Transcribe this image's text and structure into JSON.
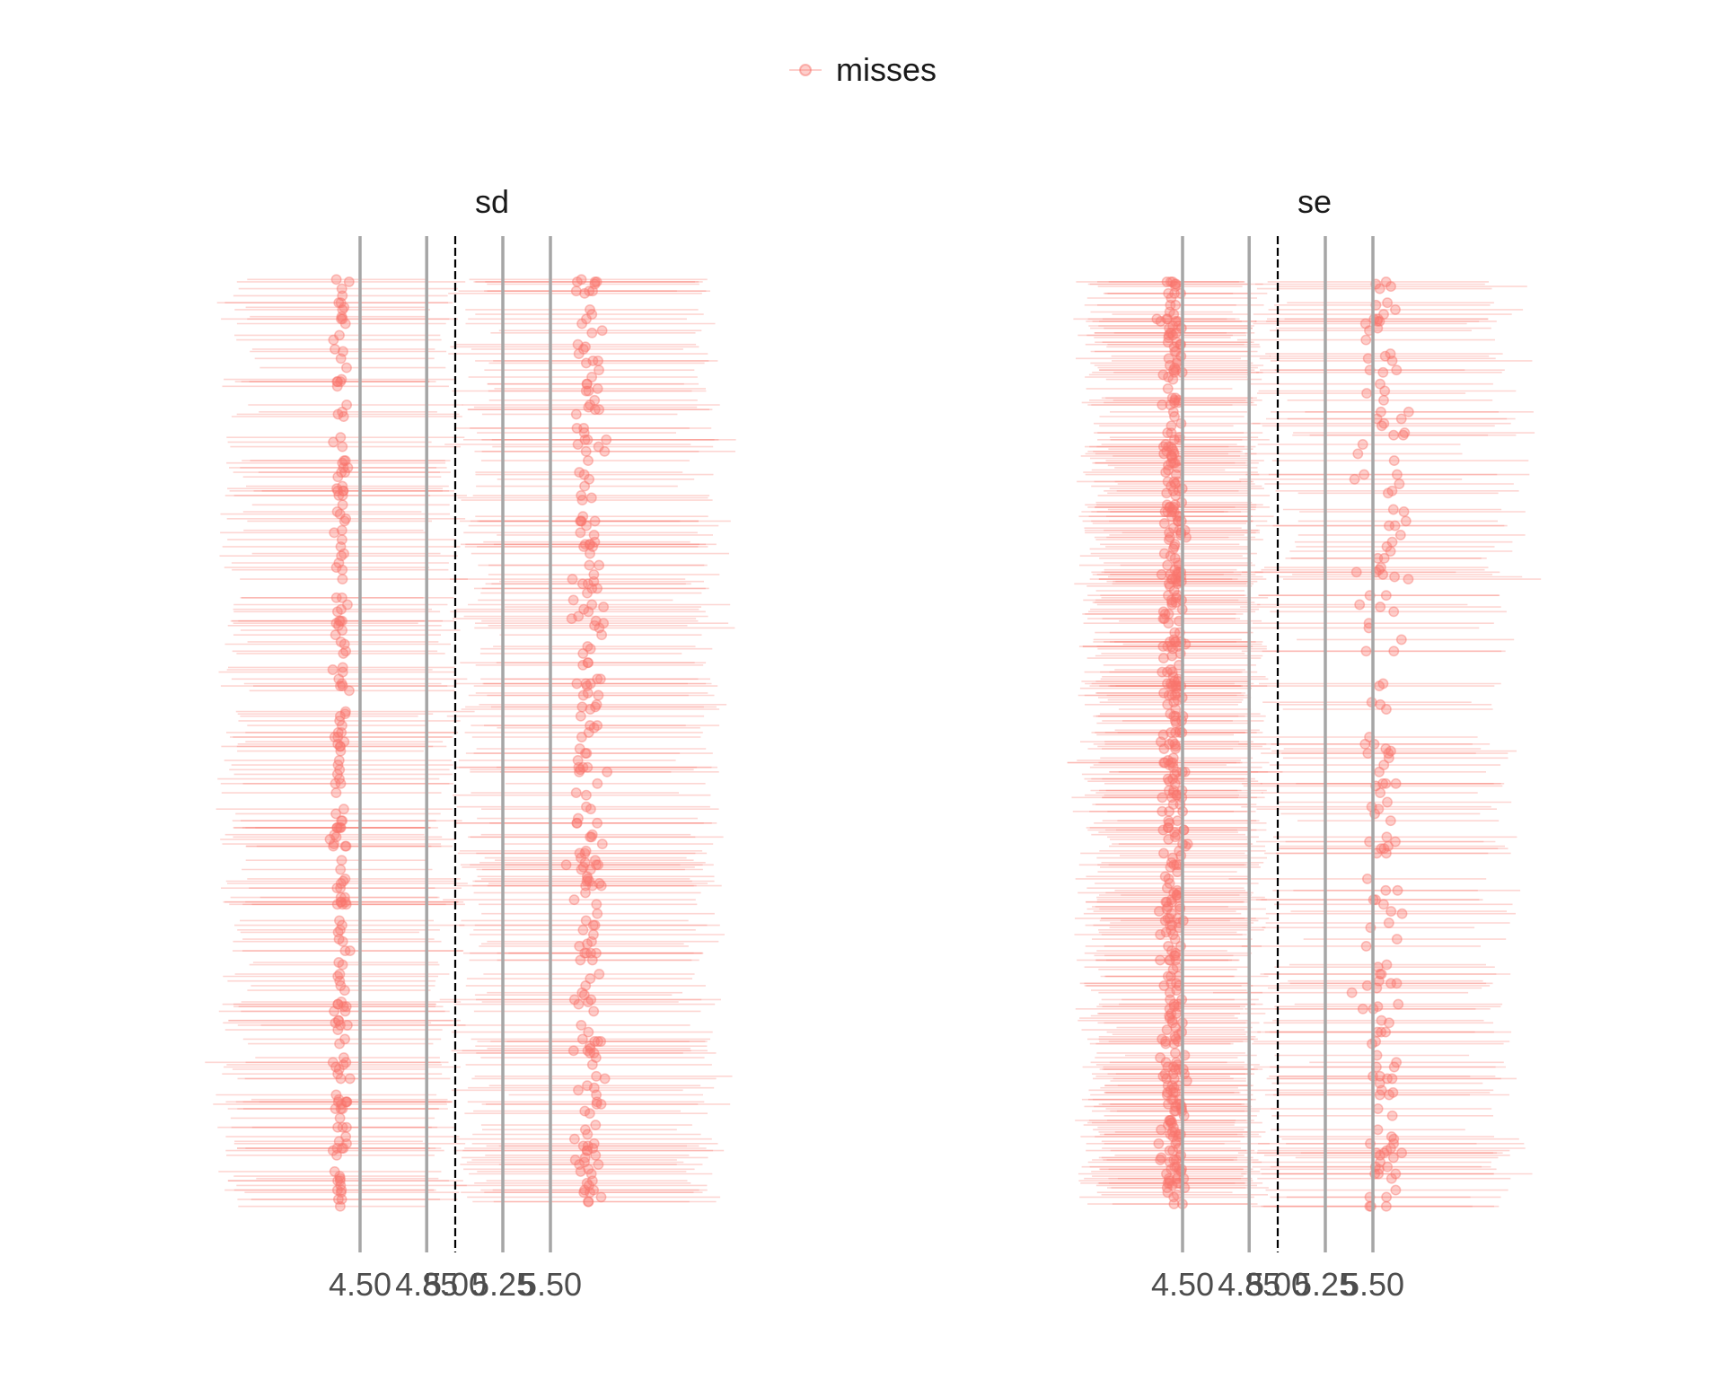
{
  "legend": {
    "label": "misses",
    "color": "#F8766D"
  },
  "chart_data": {
    "type": "scatter",
    "title": "",
    "xlabel": "",
    "ylabel": "",
    "grid": false,
    "legend_position": "top",
    "x_ticks": [
      4.5,
      4.85,
      5.0,
      5.25,
      5.5
    ],
    "x_tick_labels": [
      "4.50",
      "4.85",
      "5.00",
      "5.25",
      "5.50"
    ],
    "reference_value": 5.0,
    "rows_per_panel": 400,
    "panels": [
      {
        "label": "sd",
        "series": [
          {
            "name": "misses",
            "group": "below",
            "point_center": 4.4,
            "point_spread": 0.02,
            "half_width": 0.55,
            "count": 210
          },
          {
            "name": "misses",
            "group": "above",
            "point_center": 5.7,
            "point_spread": 0.035,
            "half_width": 0.6,
            "count": 240
          }
        ]
      },
      {
        "label": "se",
        "series": [
          {
            "name": "misses",
            "group": "below",
            "point_center": 4.45,
            "point_spread": 0.03,
            "half_width": 0.4,
            "count": 460
          },
          {
            "name": "misses",
            "group": "above",
            "point_center": 5.55,
            "point_spread": 0.06,
            "half_width": 0.6,
            "count": 180
          }
        ]
      }
    ]
  }
}
